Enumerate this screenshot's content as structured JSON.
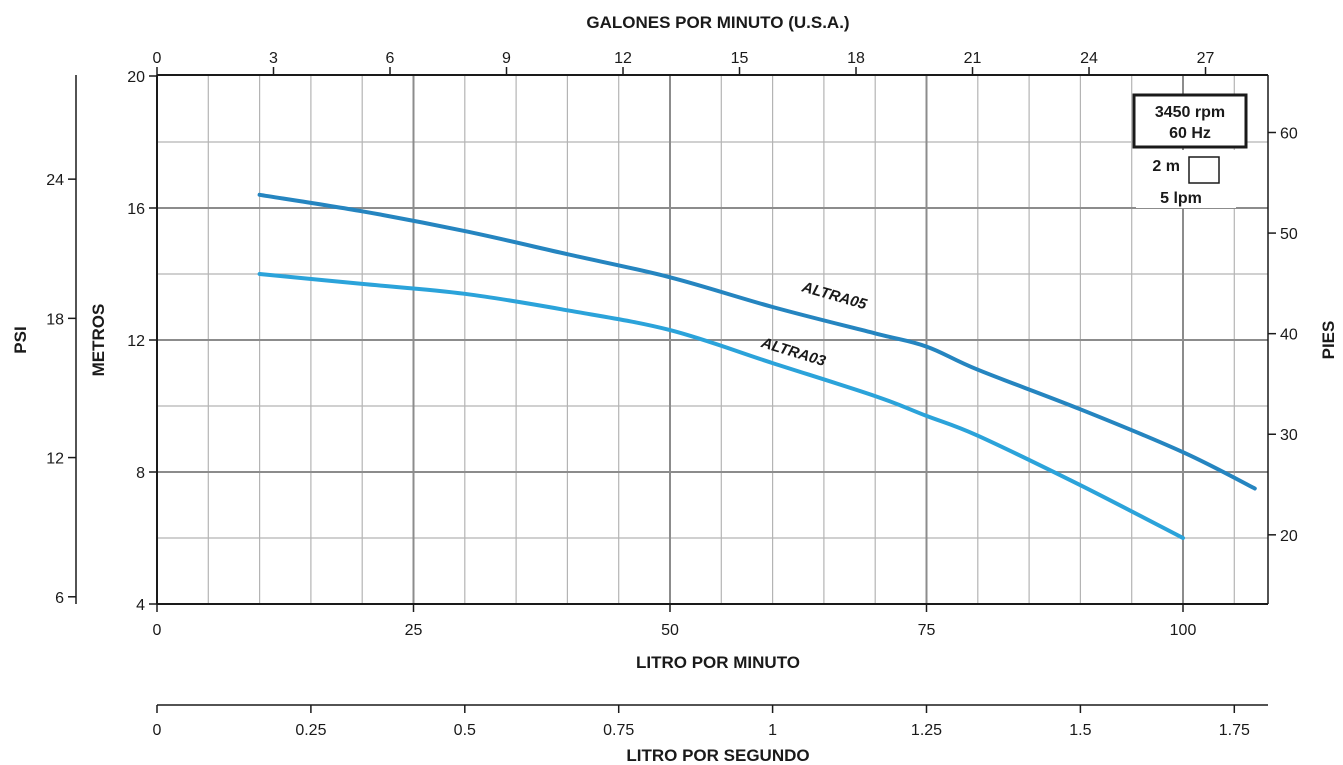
{
  "chart_data": {
    "type": "line",
    "title": "",
    "xlabel": "LITRO POR MINUTO",
    "ylabel": "METROS",
    "xlim": [
      0,
      108
    ],
    "ylim": [
      4,
      20
    ],
    "x_ticks": [
      "0",
      "25",
      "50",
      "75",
      "100"
    ],
    "y_ticks": [
      "4",
      "8",
      "12",
      "16",
      "20"
    ],
    "top_axis": {
      "label": "GALONES POR MINUTO (U.S.A.)",
      "ticks": [
        "0",
        "3",
        "6",
        "9",
        "12",
        "15",
        "18",
        "21",
        "24",
        "27"
      ]
    },
    "left_axis": {
      "label": "PSI",
      "ticks": [
        "6",
        "12",
        "18",
        "24"
      ]
    },
    "right_axis": {
      "label": "PIES",
      "ticks": [
        "20",
        "30",
        "40",
        "50",
        "60"
      ]
    },
    "bottom_axis_2": {
      "label": "LITRO POR SEGUNDO",
      "ticks": [
        "0",
        "0.25",
        "0.5",
        "0.75",
        "1",
        "1.25",
        "1.5",
        "1.75"
      ]
    },
    "grid": true,
    "series": [
      {
        "name": "ALTRA05",
        "color": "#2585c0",
        "x": [
          10,
          20,
          30,
          40,
          50,
          60,
          70,
          75,
          80,
          90,
          100,
          107
        ],
        "y": [
          16.4,
          15.9,
          15.3,
          14.6,
          13.9,
          13.0,
          12.2,
          11.8,
          11.1,
          9.9,
          8.6,
          7.5
        ]
      },
      {
        "name": "ALTRA03",
        "color": "#2ba3da",
        "x": [
          10,
          20,
          30,
          40,
          50,
          60,
          70,
          75,
          80,
          90,
          100
        ],
        "y": [
          14.0,
          13.7,
          13.4,
          12.9,
          12.3,
          11.3,
          10.3,
          9.7,
          9.1,
          7.6,
          6.0
        ]
      }
    ],
    "info_box": {
      "line1": "3450 rpm",
      "line2": "60 Hz"
    },
    "scale_note": {
      "vertical": "2 m",
      "horizontal": "5 lpm"
    }
  }
}
